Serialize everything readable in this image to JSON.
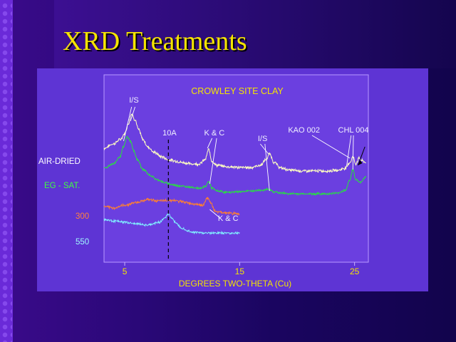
{
  "slide": {
    "title": "XRD Treatments"
  },
  "chart_data": {
    "type": "line",
    "title": "CROWLEY SITE CLAY",
    "xlabel": "DEGREES TWO-THETA (Cu)",
    "ylabel": "",
    "xlim": [
      3.2,
      26.2
    ],
    "xticks": [
      5,
      15,
      25
    ],
    "xtick_labels": [
      "5",
      "15",
      "25"
    ],
    "grid": false,
    "series": [
      {
        "name": "AIR-DRIED",
        "color": "#ffffc0",
        "base": 0.0,
        "noise": 0.016,
        "x": [
          3.2,
          4.0,
          4.6,
          5.0,
          5.3,
          5.6,
          5.9,
          6.2,
          6.6,
          7.0,
          7.6,
          8.2,
          8.8,
          9.4,
          10.0,
          10.8,
          11.5,
          12.0,
          12.3,
          12.6,
          13.0,
          14.0,
          15.0,
          16.0,
          16.8,
          17.3,
          17.6,
          18.0,
          18.6,
          19.5,
          20.5,
          21.5,
          22.5,
          23.5,
          24.2,
          24.6,
          24.85,
          25.1,
          25.4,
          25.7,
          26.0
        ],
        "y": [
          0.64,
          0.7,
          0.76,
          0.84,
          0.98,
          1.12,
          1.04,
          0.9,
          0.76,
          0.66,
          0.58,
          0.52,
          0.48,
          0.46,
          0.44,
          0.42,
          0.42,
          0.48,
          0.62,
          0.46,
          0.4,
          0.38,
          0.37,
          0.37,
          0.4,
          0.48,
          0.56,
          0.44,
          0.36,
          0.33,
          0.32,
          0.32,
          0.32,
          0.33,
          0.36,
          0.44,
          0.52,
          0.42,
          0.5,
          0.46,
          0.44
        ]
      },
      {
        "name": "EG - SAT.",
        "color": "#28e040",
        "base": 0.0,
        "noise": 0.012,
        "x": [
          3.2,
          4.0,
          4.6,
          4.9,
          5.2,
          5.5,
          5.8,
          6.1,
          6.6,
          7.2,
          7.8,
          8.6,
          9.4,
          10.4,
          11.5,
          12.0,
          12.3,
          12.6,
          13.0,
          14.0,
          15.0,
          16.0,
          16.8,
          17.5,
          18.0,
          18.6,
          19.5,
          20.5,
          21.5,
          22.5,
          23.5,
          24.2,
          24.6,
          24.85,
          25.1,
          25.5,
          26.0
        ],
        "y": [
          0.36,
          0.42,
          0.52,
          0.66,
          0.8,
          0.74,
          0.6,
          0.48,
          0.34,
          0.26,
          0.2,
          0.15,
          0.12,
          0.1,
          0.08,
          0.1,
          0.17,
          0.08,
          0.04,
          0.02,
          0.03,
          0.04,
          0.05,
          0.06,
          0.03,
          0.01,
          0.0,
          0.0,
          0.0,
          0.0,
          0.01,
          0.05,
          0.2,
          0.34,
          0.2,
          0.16,
          0.24
        ]
      },
      {
        "name": "300",
        "color": "#ff8030",
        "base": 0.0,
        "noise": 0.014,
        "x": [
          3.2,
          4.0,
          5.0,
          6.0,
          7.0,
          8.0,
          9.0,
          10.0,
          11.0,
          11.8,
          12.2,
          12.5,
          12.8,
          13.3,
          14.0,
          15.0
        ],
        "y": [
          -0.18,
          -0.2,
          -0.16,
          -0.12,
          -0.08,
          -0.1,
          -0.09,
          -0.11,
          -0.14,
          -0.16,
          -0.06,
          -0.12,
          -0.24,
          -0.26,
          -0.27,
          -0.28
        ]
      },
      {
        "name": "550",
        "color": "#80f0ff",
        "base": 0.0,
        "noise": 0.012,
        "x": [
          3.2,
          4.0,
          5.0,
          6.0,
          7.0,
          8.0,
          8.5,
          8.8,
          9.1,
          9.5,
          10.0,
          10.5,
          11.0,
          12.0,
          13.0,
          14.0,
          15.0
        ],
        "y": [
          -0.36,
          -0.38,
          -0.4,
          -0.42,
          -0.44,
          -0.4,
          -0.34,
          -0.28,
          -0.34,
          -0.42,
          -0.48,
          -0.52,
          -0.54,
          -0.55,
          -0.55,
          -0.55,
          -0.55
        ]
      }
    ],
    "series_labels": [
      {
        "text": "AIR-DRIED",
        "color": "#ffffff"
      },
      {
        "text": "EG  - SAT.",
        "color": "#40ff40"
      },
      {
        "text": "300",
        "color": "#ff8040"
      },
      {
        "text": "550",
        "color": "#a0f8ff"
      }
    ],
    "annotations": [
      {
        "text": "I/S",
        "tx": 5.8,
        "ty": 1.28
      },
      {
        "text": "10A",
        "tx": 8.9,
        "ty": 0.82,
        "dashed_line_x": 8.8
      },
      {
        "text": "K & C",
        "tx": 12.8,
        "ty": 0.82
      },
      {
        "text": "I/S",
        "tx": 17.0,
        "ty": 0.74
      },
      {
        "text": "KAO 002",
        "tx": 20.6,
        "ty": 0.86
      },
      {
        "text": "CHL 004",
        "tx": 24.9,
        "ty": 0.86
      },
      {
        "text": "K & C",
        "tx": 14.0,
        "ty": -0.38
      }
    ]
  }
}
